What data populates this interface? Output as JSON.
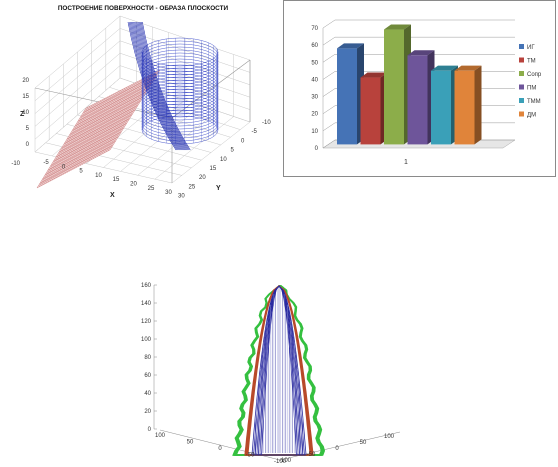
{
  "surface_plot": {
    "title": "ПОСТРОЕНИЕ ПОВЕРХНОСТИ - ОБРАЗА ПЛОСКОСТИ",
    "x_label": "X",
    "y_label": "Y",
    "z_label": "Z",
    "x_ticks": [
      "-5",
      "0",
      "5",
      "10",
      "15",
      "20",
      "25",
      "30"
    ],
    "y_ticks": [
      "-10",
      "-5",
      "0",
      "5",
      "10",
      "15",
      "20",
      "25",
      "30"
    ],
    "z_ticks": [
      "0",
      "5",
      "10",
      "15",
      "20"
    ],
    "z_bottom_tick": "-10",
    "colors": {
      "plane": "#c06060",
      "cylinder": "#3b4bc8",
      "ribbon": "#2430b0",
      "grid": "#c8c8c8"
    }
  },
  "cone_plot": {
    "z_ticks": [
      "0",
      "20",
      "40",
      "60",
      "80",
      "100",
      "120",
      "140",
      "160"
    ],
    "x_ticks": [
      "100",
      "50",
      "0",
      "-50",
      "-100"
    ],
    "y_ticks": [
      "-100",
      "-50",
      "0",
      "50",
      "100"
    ],
    "colors": {
      "outer": "#35c040",
      "middle": "#b84a2a",
      "inner": "#2a2aa0",
      "lines": "#9aa0d8"
    }
  },
  "chart_data": {
    "type": "bar",
    "categories": [
      "1"
    ],
    "series": [
      {
        "name": "ИГ",
        "values": [
          56
        ],
        "color": "#4573b6"
      },
      {
        "name": "ТМ",
        "values": [
          39
        ],
        "color": "#b8423c"
      },
      {
        "name": "Сопр",
        "values": [
          67
        ],
        "color": "#8cad4a"
      },
      {
        "name": "ПМ",
        "values": [
          52
        ],
        "color": "#6e559a"
      },
      {
        "name": "ТММ",
        "values": [
          43
        ],
        "color": "#3aa0b8"
      },
      {
        "name": "ДМ",
        "values": [
          43
        ],
        "color": "#e0843a"
      }
    ],
    "y_ticks": [
      "0",
      "10",
      "20",
      "30",
      "40",
      "50",
      "60",
      "70"
    ],
    "ylim": [
      0,
      70
    ],
    "grid": true,
    "legend": "right"
  }
}
